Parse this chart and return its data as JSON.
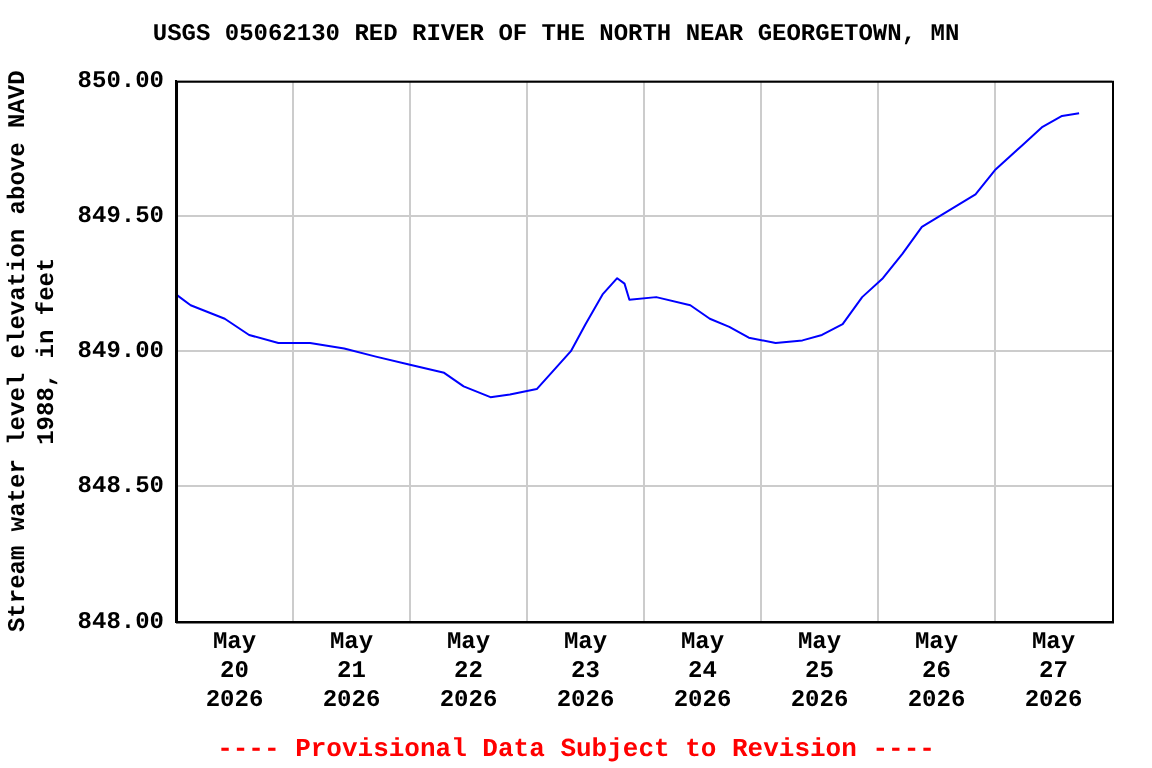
{
  "chart_data": {
    "type": "line",
    "title": "USGS 05062130 RED RIVER OF THE NORTH NEAR GEORGETOWN, MN",
    "ylabel": "Stream water level elevation above NAVD 1988, in feet",
    "annotations": [
      "---- Provisional Data Subject to Revision ----"
    ],
    "x": [
      "2026-05-20T00:00",
      "2026-05-20T03:00",
      "2026-05-20T10:00",
      "2026-05-20T15:00",
      "2026-05-20T21:00",
      "2026-05-21T03:30",
      "2026-05-21T10:30",
      "2026-05-21T17:00",
      "2026-05-22T00:00",
      "2026-05-22T07:00",
      "2026-05-22T11:00",
      "2026-05-22T16:30",
      "2026-05-22T20:30",
      "2026-05-23T02:00",
      "2026-05-23T05:00",
      "2026-05-23T09:00",
      "2026-05-23T12:00",
      "2026-05-23T15:30",
      "2026-05-23T18:30",
      "2026-05-23T20:00",
      "2026-05-23T21:00",
      "2026-05-24T02:30",
      "2026-05-24T09:30",
      "2026-05-24T13:30",
      "2026-05-24T17:30",
      "2026-05-24T21:30",
      "2026-05-25T03:00",
      "2026-05-25T08:30",
      "2026-05-25T12:30",
      "2026-05-25T16:45",
      "2026-05-25T20:45",
      "2026-05-26T01:00",
      "2026-05-26T05:00",
      "2026-05-26T09:00",
      "2026-05-26T14:30",
      "2026-05-26T20:00",
      "2026-05-27T00:00",
      "2026-05-27T05:30",
      "2026-05-27T09:45",
      "2026-05-27T13:45",
      "2026-05-27T17:15"
    ],
    "series": [
      {
        "color": "#0000ff",
        "values": [
          849.21,
          849.17,
          849.12,
          849.06,
          849.03,
          849.03,
          849.01,
          848.98,
          848.95,
          848.92,
          848.87,
          848.83,
          848.84,
          848.86,
          848.92,
          849.0,
          849.1,
          849.21,
          849.27,
          849.25,
          849.19,
          849.2,
          849.17,
          849.12,
          849.09,
          849.05,
          849.03,
          849.04,
          849.06,
          849.1,
          849.2,
          849.27,
          849.36,
          849.46,
          849.52,
          849.58,
          849.67,
          849.76,
          849.83,
          849.87,
          849.88
        ]
      }
    ],
    "xlim": [
      "2026-05-20",
      "2026-05-28"
    ],
    "xticks": [
      {
        "value": "2026-05-20T12:00",
        "label": "May\n20\n2026"
      },
      {
        "value": "2026-05-21T00:00",
        "label": null
      },
      {
        "value": "2026-05-21T12:00",
        "label": "May\n21\n2026"
      },
      {
        "value": "2026-05-22T00:00",
        "label": null
      },
      {
        "value": "2026-05-22T12:00",
        "label": "May\n22\n2026"
      },
      {
        "value": "2026-05-23T00:00",
        "label": null
      },
      {
        "value": "2026-05-23T12:00",
        "label": "May\n23\n2026"
      },
      {
        "value": "2026-05-24T00:00",
        "label": null
      },
      {
        "value": "2026-05-24T12:00",
        "label": "May\n24\n2026"
      },
      {
        "value": "2026-05-25T00:00",
        "label": null
      },
      {
        "value": "2026-05-25T12:00",
        "label": "May\n25\n2026"
      },
      {
        "value": "2026-05-26T00:00",
        "label": null
      },
      {
        "value": "2026-05-26T12:00",
        "label": "May\n26\n2026"
      },
      {
        "value": "2026-05-27T00:00",
        "label": null
      },
      {
        "value": "2026-05-27T12:00",
        "label": "May\n27\n2026"
      }
    ],
    "ylim": [
      848,
      850
    ],
    "yticks": [
      {
        "value": 848,
        "label": "848.00"
      },
      {
        "value": 848.5,
        "label": "848.50"
      },
      {
        "value": 849,
        "label": "849.00"
      },
      {
        "value": 849.5,
        "label": "849.50"
      },
      {
        "value": 850,
        "label": "850.00"
      }
    ],
    "grid": true,
    "marker": "none",
    "line_style": "solid"
  }
}
